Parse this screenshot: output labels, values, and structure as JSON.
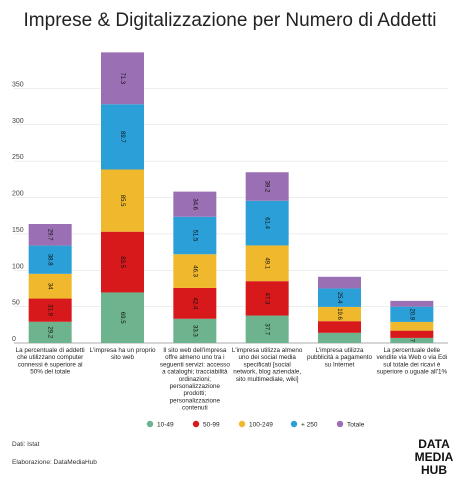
{
  "chart_data": {
    "type": "bar",
    "stacked": true,
    "title": "Imprese & Digitalizzazione per Numero di Addetti",
    "categories": [
      "La percentuale di addetti che utilizzano computer connessi è superiore al 50% del totale",
      "L'impresa ha un proprio sito web",
      "Il sito web dell'impresa offre almeno uno tra i seguenti servizi: accesso a cataloghi; tracciabilità ordinazioni; personalizzazione prodotti; personalizzazione contenuti",
      "L'impresa utilizza almeno uno dei social media specificati [social network, blog aziendale, sito multimediale, wiki]",
      "L'impresa utilizza pubblicità a pagamento su Internet",
      "La percentuale delle vendite via Web o via Edi sul totale dei ricavi è superiore o uguale all'1%"
    ],
    "category_lines": [
      [
        "La percentuale di addetti",
        "che utilizzano computer",
        "connessi è superiore al",
        "50% del totale"
      ],
      [
        "L'impresa ha un proprio",
        "sito web"
      ],
      [
        "Il sito web dell'impresa",
        "offre almeno uno tra i",
        "seguenti servizi: accesso",
        "a cataloghi; tracciabilità",
        "ordinazioni;",
        "personalizzazione",
        "prodotti;",
        "personalizzazione",
        "contenuti"
      ],
      [
        "L'impresa utilizza almeno",
        "uno dei social media",
        "specificati [social",
        "network, blog aziendale,",
        "sito multimediale, wiki]"
      ],
      [
        "L'impresa utilizza",
        "pubblicità a pagamento",
        "su Internet"
      ],
      [
        "La percentuale delle",
        "vendite via Web o via Edi",
        "sul totale dei ricavi è",
        "superiore o uguale all'1%"
      ]
    ],
    "series": [
      {
        "name": "10-49",
        "color": "#6db38d",
        "values": [
          29.2,
          69.5,
          33.3,
          37.7,
          14,
          7
        ]
      },
      {
        "name": "50-99",
        "color": "#d7191c",
        "values": [
          31.9,
          83.5,
          42.4,
          47.3,
          16,
          10
        ]
      },
      {
        "name": "100-249",
        "color": "#f0b92d",
        "values": [
          34,
          85.5,
          46.3,
          49.1,
          19.6,
          12
        ]
      },
      {
        "name": "+ 250",
        "color": "#2a9fd8",
        "values": [
          38.8,
          89.7,
          51.5,
          61.4,
          25.4,
          20.9
        ]
      },
      {
        "name": "Totale",
        "color": "#9b6fb3",
        "values": [
          29.7,
          71.3,
          34.6,
          39.2,
          16,
          8
        ]
      }
    ],
    "data_labels": [
      [
        "29.2",
        "31.9",
        "34",
        "38.8",
        "29.7"
      ],
      [
        "69.5",
        "83.5",
        "85.5",
        "89.7",
        "71.3"
      ],
      [
        "33.3",
        "42.4",
        "46.3",
        "51.5",
        "34.6"
      ],
      [
        "37.7",
        "47.3",
        "49.1",
        "61.4",
        "39.2"
      ],
      [
        "",
        "",
        "19.6",
        "25.4",
        ""
      ],
      [
        "7",
        "",
        "",
        "20.9",
        ""
      ]
    ],
    "yticks": [
      0,
      50,
      100,
      150,
      200,
      250,
      300,
      350
    ],
    "ylim": [
      0,
      400
    ],
    "xlabel": "",
    "ylabel": "",
    "grid": true,
    "legend_position": "bottom"
  },
  "footer": {
    "source": "Dati: Istat",
    "credit": "Elaborazione: DataMediaHub"
  },
  "logo": {
    "line1": "DATA",
    "line2": "MEDIA",
    "line3": "HUB"
  }
}
